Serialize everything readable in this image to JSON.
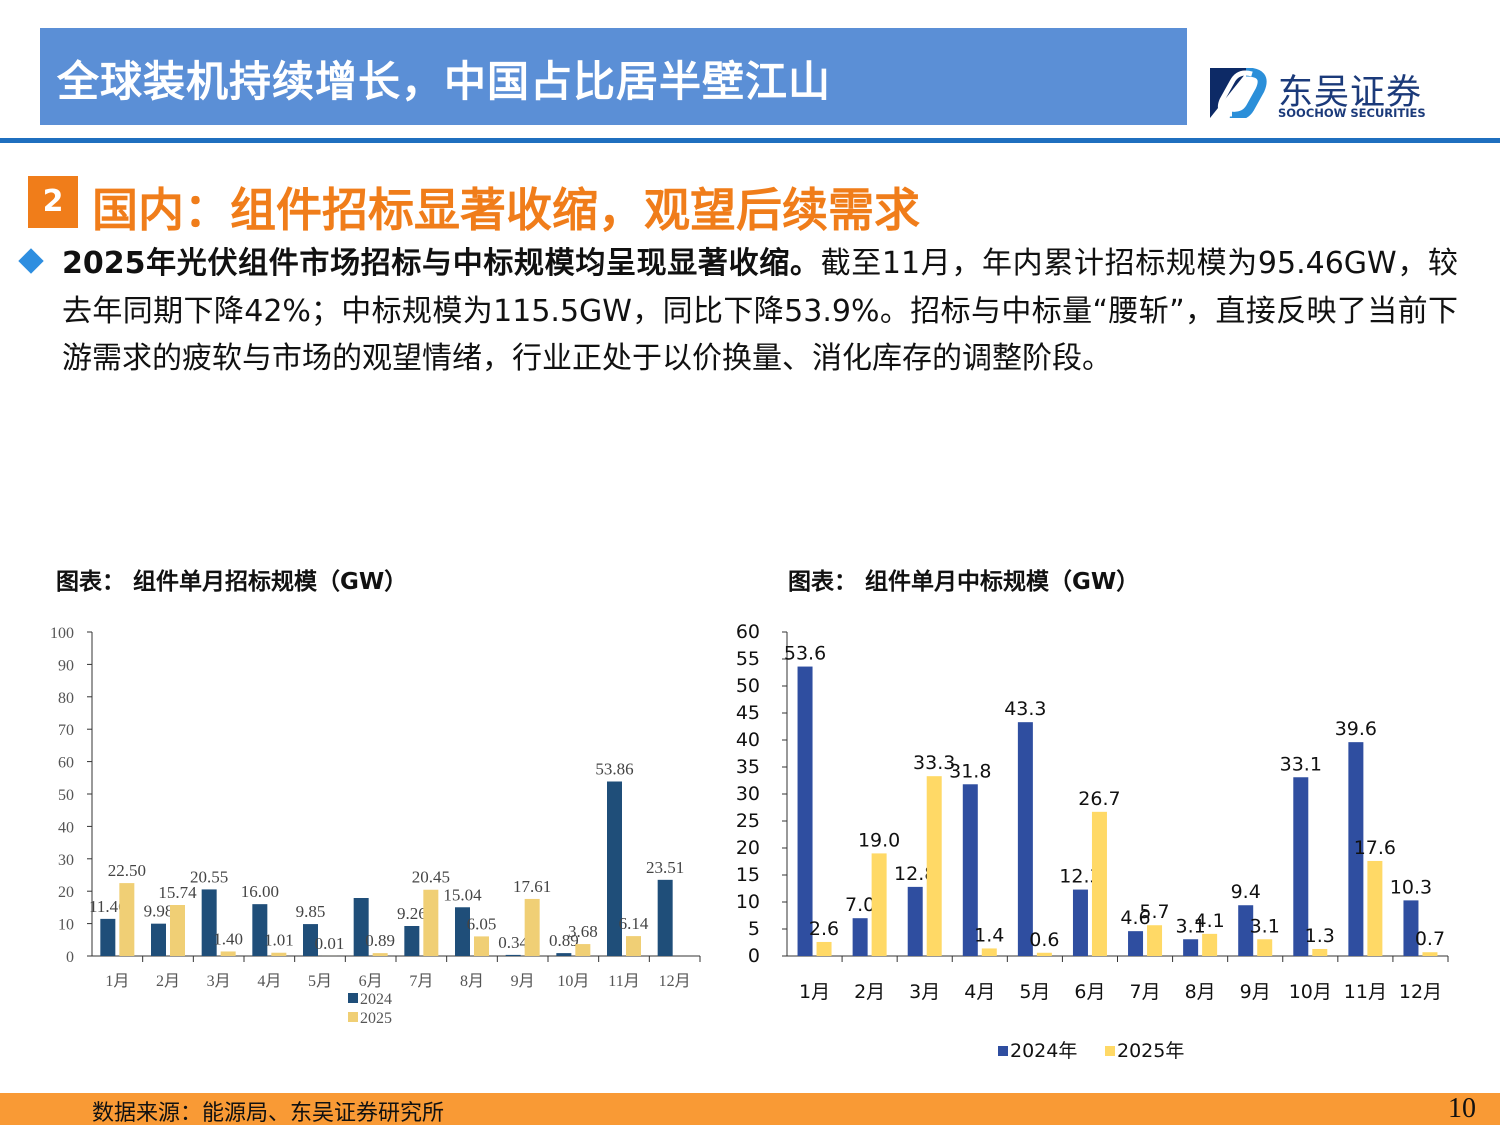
{
  "header": {
    "title": "全球装机持续增长，中国占比居半壁江山"
  },
  "logo": {
    "cn": "东吴证券",
    "en": "SOOCHOW SECURITIES",
    "colors": [
      "#0d2a66",
      "#2b8fd9"
    ]
  },
  "section": {
    "number": "2",
    "title": "国内：组件招标显著收缩，观望后续需求"
  },
  "body": {
    "bold": "2025年光伏组件市场招标与中标规模均呈现显著收缩。",
    "text": "截至11月，年内累计招标规模为95.46GW，较去年同期下降42%；中标规模为115.5GW，同比下降53.9%。招标与中标量“腰斩”，直接反映了当前下游需求的疲软与市场的观望情绪，行业正处于以价换量、消化库存的调整阶段。"
  },
  "footer": {
    "source": "数据来源：能源局、东吴证券研究所",
    "page": "10"
  },
  "colors": {
    "accent_orange": "#f07d1a",
    "header_blue": "#5b8fd6"
  },
  "chart_data": [
    {
      "type": "bar",
      "title": "图表： 组件单月招标规模（GW）",
      "categories": [
        "1月",
        "2月",
        "3月",
        "4月",
        "5月",
        "6月",
        "7月",
        "8月",
        "9月",
        "10月",
        "11月",
        "12月"
      ],
      "ylim": [
        0,
        100
      ],
      "yticks": [
        "0",
        "10",
        "20",
        "30",
        "40",
        "50",
        "60",
        "70",
        "80",
        "90",
        "100"
      ],
      "legend": "bottom",
      "grid": false,
      "series": [
        {
          "name": "2024",
          "color": "#1f4e79",
          "values": [
            11.46,
            9.98,
            20.55,
            16.0,
            9.85,
            17.9,
            9.26,
            15.04,
            0.34,
            0.89,
            53.86,
            23.51
          ],
          "labels": [
            "11.46",
            "9.98",
            "20.55",
            "16.00",
            "9.85",
            "",
            "9.26",
            "15.04",
            "0.34",
            "0.89",
            "53.86",
            "23.51"
          ]
        },
        {
          "name": "2025",
          "color": "#f0cf75",
          "values": [
            22.5,
            15.74,
            1.4,
            1.01,
            0.01,
            0.89,
            20.45,
            6.05,
            17.61,
            3.68,
            6.14,
            null
          ],
          "labels": [
            "22.50",
            "15.74",
            "1.40",
            "1.01",
            "0.01",
            "0.89",
            "20.45",
            "6.05",
            "17.61",
            "3.68",
            "6.14",
            ""
          ]
        }
      ]
    },
    {
      "type": "bar",
      "title": "图表： 组件单月中标规模（GW）",
      "categories": [
        "1月",
        "2月",
        "3月",
        "4月",
        "5月",
        "6月",
        "7月",
        "8月",
        "9月",
        "10月",
        "11月",
        "12月"
      ],
      "ylim": [
        0,
        60
      ],
      "yticks": [
        "0",
        "5",
        "10",
        "15",
        "20",
        "25",
        "30",
        "35",
        "40",
        "45",
        "50",
        "55",
        "60"
      ],
      "legend": "bottom",
      "grid": false,
      "series": [
        {
          "name": "2024年",
          "color": "#2f4ea0",
          "values": [
            53.6,
            7.0,
            12.8,
            31.8,
            43.3,
            12.3,
            4.6,
            3.1,
            9.4,
            33.1,
            39.6,
            10.3
          ],
          "labels": [
            "53.6",
            "7.0",
            "12.8",
            "31.8",
            "43.3",
            "12.3",
            "4.6",
            "3.1",
            "9.4",
            "33.1",
            "39.6",
            "10.3"
          ]
        },
        {
          "name": "2025年",
          "color": "#ffd966",
          "values": [
            2.6,
            19.0,
            33.3,
            1.4,
            0.6,
            26.7,
            5.7,
            4.1,
            3.1,
            1.3,
            17.6,
            0.7
          ],
          "labels": [
            "2.6",
            "19.0",
            "33.3",
            "1.4",
            "0.6",
            "26.7",
            "5.7",
            "4.1",
            "3.1",
            "1.3",
            "17.6",
            "0.7"
          ]
        }
      ]
    }
  ]
}
